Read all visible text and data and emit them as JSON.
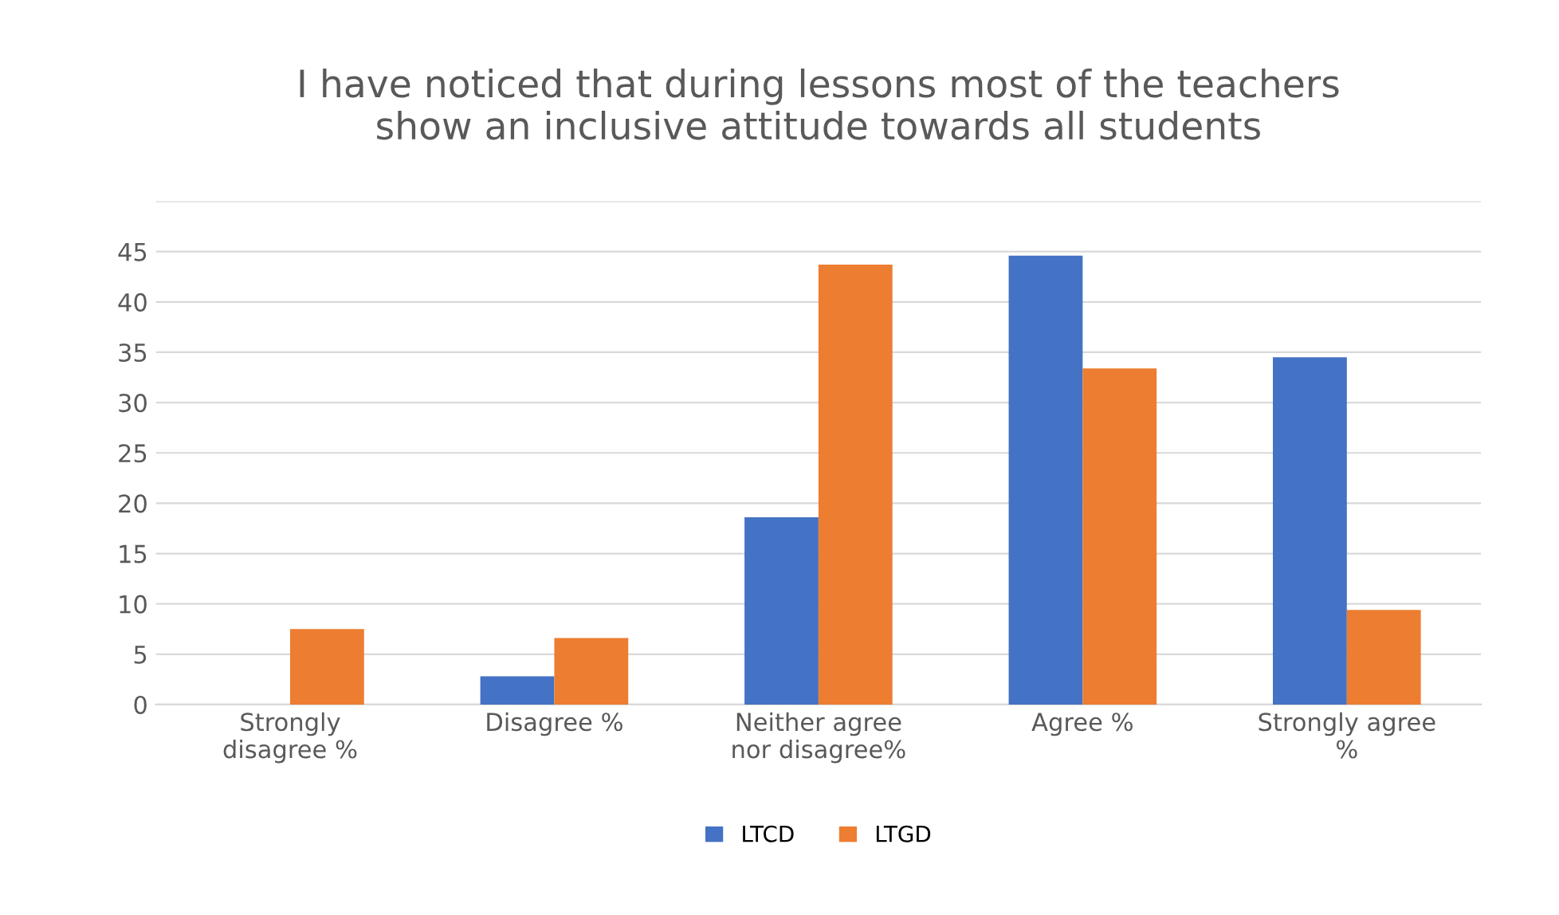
{
  "chart_data": {
    "type": "bar",
    "title": "I have noticed that during lessons most of the teachers\nshow an inclusive attitude towards all students",
    "categories": [
      "Strongly\ndisagree %",
      "Disagree %",
      "Neither agree\nnor disagree%",
      "Agree %",
      "Strongly agree\n%"
    ],
    "series": [
      {
        "name": "LTCD",
        "color": "#4472c4",
        "values": [
          0,
          2.8,
          18.6,
          44.6,
          34.5
        ]
      },
      {
        "name": "LTGD",
        "color": "#ed7d31",
        "values": [
          7.5,
          6.6,
          43.7,
          33.4,
          9.4
        ]
      }
    ],
    "ylim": [
      0,
      50
    ],
    "yticks": [
      0,
      5,
      10,
      15,
      20,
      25,
      30,
      35,
      40,
      45,
      {
        "value": 50,
        "label": null
      }
    ],
    "grid": "y",
    "legend": "bottom"
  }
}
